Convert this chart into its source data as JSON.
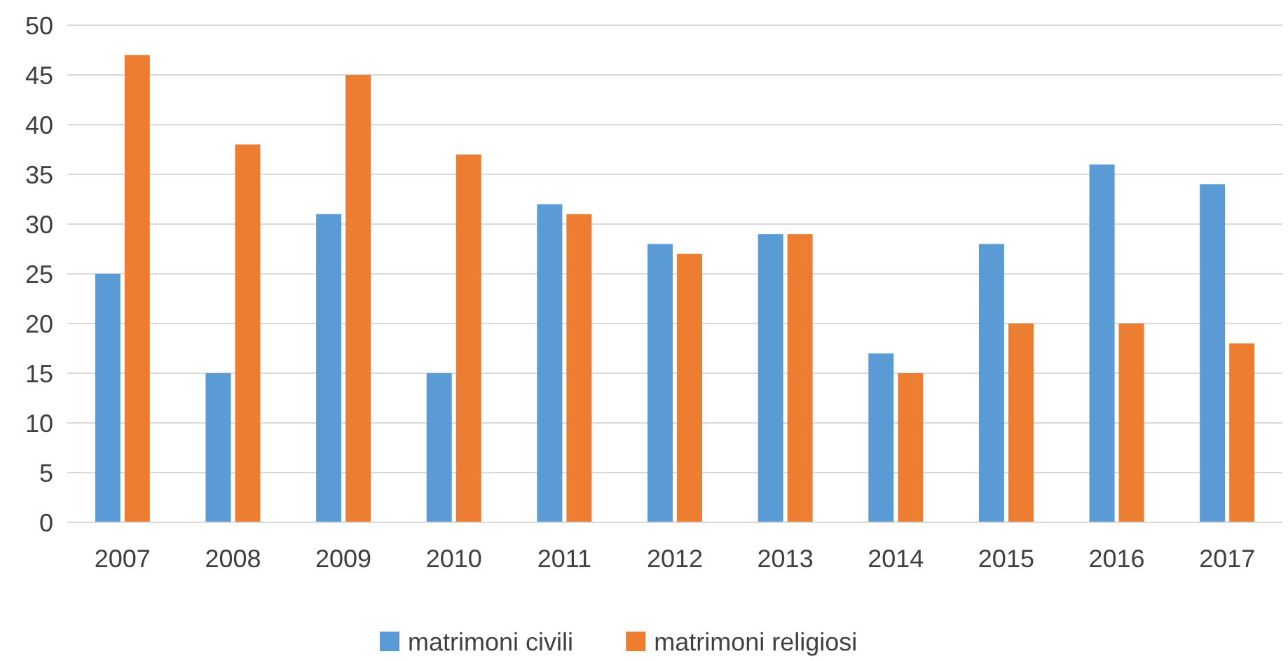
{
  "chart_data": {
    "type": "bar",
    "categories": [
      "2007",
      "2008",
      "2009",
      "2010",
      "2011",
      "2012",
      "2013",
      "2014",
      "2015",
      "2016",
      "2017"
    ],
    "series": [
      {
        "name": "matrimoni civili",
        "color": "#5b9bd5",
        "values": [
          25,
          15,
          31,
          15,
          32,
          28,
          29,
          17,
          28,
          36,
          34
        ]
      },
      {
        "name": "matrimoni religiosi",
        "color": "#ed7d31",
        "values": [
          47,
          38,
          45,
          37,
          31,
          27,
          29,
          15,
          20,
          20,
          18
        ]
      }
    ],
    "ylim": [
      0,
      50
    ],
    "yticks": [
      0,
      5,
      10,
      15,
      20,
      25,
      30,
      35,
      40,
      45,
      50
    ],
    "grid": "y",
    "legend": "bottom"
  }
}
